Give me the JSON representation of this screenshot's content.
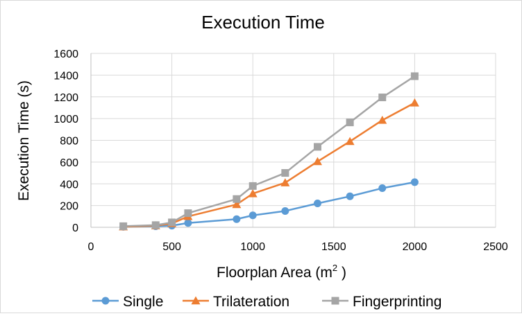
{
  "chart_data": {
    "type": "line",
    "title": "Execution Time",
    "xlabel_main": "Floorplan Area (m",
    "xlabel_sup": "2",
    "xlabel_end": " )",
    "ylabel": "Execution Time (s)",
    "xlim": [
      0,
      2500
    ],
    "ylim": [
      0,
      1600
    ],
    "xticks": [
      0,
      500,
      1000,
      1500,
      2000,
      2500
    ],
    "yticks": [
      0,
      200,
      400,
      600,
      800,
      1000,
      1200,
      1400,
      1600
    ],
    "grid": true,
    "legend_position": "bottom",
    "series": [
      {
        "name": "Single",
        "marker": "circle",
        "color": "#5b9bd5",
        "points": [
          [
            200,
            5
          ],
          [
            400,
            10
          ],
          [
            500,
            15
          ],
          [
            600,
            40
          ],
          [
            900,
            75
          ],
          [
            1000,
            110
          ],
          [
            1200,
            150
          ],
          [
            1400,
            220
          ],
          [
            1600,
            285
          ],
          [
            1800,
            360
          ],
          [
            2000,
            415
          ]
        ]
      },
      {
        "name": "Trilateration",
        "marker": "triangle",
        "color": "#ed7d31",
        "points": [
          [
            200,
            5
          ],
          [
            400,
            15
          ],
          [
            500,
            35
          ],
          [
            600,
            100
          ],
          [
            900,
            210
          ],
          [
            1000,
            310
          ],
          [
            1200,
            410
          ],
          [
            1400,
            605
          ],
          [
            1600,
            790
          ],
          [
            1800,
            985
          ],
          [
            2000,
            1145
          ]
        ]
      },
      {
        "name": "Fingerprinting",
        "marker": "square",
        "color": "#a5a5a5",
        "points": [
          [
            200,
            10
          ],
          [
            400,
            20
          ],
          [
            500,
            45
          ],
          [
            600,
            130
          ],
          [
            900,
            260
          ],
          [
            1000,
            380
          ],
          [
            1200,
            500
          ],
          [
            1400,
            740
          ],
          [
            1600,
            965
          ],
          [
            1800,
            1195
          ],
          [
            2000,
            1390
          ]
        ]
      }
    ]
  }
}
